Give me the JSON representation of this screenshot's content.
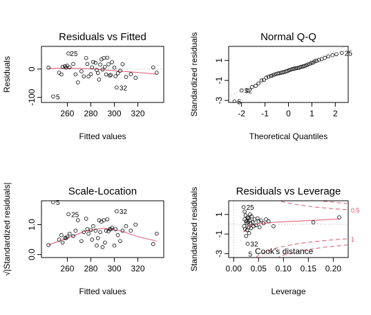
{
  "figure": {
    "colors": {
      "axis": "#000000",
      "points": "#000000",
      "smooth": "#df536b",
      "guide": "#bebebe",
      "cook": "#df536b"
    }
  },
  "chart_data": [
    {
      "type": "scatter",
      "title": "Residuals vs Fitted",
      "xlabel": "Fitted values",
      "ylabel": "Residuals",
      "xlim": [
        238,
        342
      ],
      "ylim": [
        -118,
        80
      ],
      "xticks": [
        260,
        280,
        300,
        320
      ],
      "yticks": [
        -100,
        0
      ],
      "grid": false,
      "ref_lines": [
        {
          "axis": "y",
          "value": 0,
          "style": "dotted"
        }
      ],
      "x": [
        244,
        248,
        253,
        255,
        256,
        258,
        259,
        260,
        261,
        262,
        265,
        267,
        269,
        272,
        274,
        276,
        277,
        278,
        280,
        281,
        282,
        284,
        285,
        286,
        287,
        288,
        289,
        290,
        291,
        292,
        293,
        294,
        295,
        296,
        297,
        298,
        300,
        301,
        302,
        303,
        305,
        307,
        310,
        314,
        318,
        333,
        336
      ],
      "y": [
        5,
        -97,
        -13,
        -19,
        8,
        10,
        5,
        12,
        55,
        6,
        18,
        -19,
        -47,
        -8,
        -26,
        39,
        18,
        -26,
        -18,
        6,
        25,
        22,
        -3,
        -14,
        -37,
        16,
        34,
        -2,
        39,
        8,
        -19,
        40,
        17,
        -23,
        -21,
        24,
        5,
        -25,
        -65,
        -15,
        -6,
        17,
        -28,
        -18,
        -31,
        6,
        -13
      ],
      "smooth": {
        "x": [
          244,
          260,
          280,
          300,
          320,
          336
        ],
        "y": [
          2,
          3,
          1,
          -6,
          -12,
          -18
        ]
      },
      "point_labels": [
        {
          "text": "25",
          "x": 260,
          "y": 55
        },
        {
          "text": "5",
          "x": 248,
          "y": -97
        },
        {
          "text": "32",
          "x": 302,
          "y": -65
        }
      ]
    },
    {
      "type": "scatter",
      "title": "Normal Q-Q",
      "xlabel": "Theoretical Quantiles",
      "ylabel": "Standardized residuals",
      "xlim": [
        -2.55,
        2.55
      ],
      "ylim": [
        -3.2,
        2.4
      ],
      "xticks": [
        -2,
        -1,
        0,
        1,
        2
      ],
      "yticks": [
        -3,
        -1,
        1
      ],
      "grid": false,
      "ref_lines": [
        {
          "axis": "diag",
          "intercept": 0,
          "slope": 1,
          "style": "dotted"
        }
      ],
      "x": [
        -2.3,
        -2.0,
        -1.75,
        -1.55,
        -1.4,
        -1.28,
        -1.15,
        -1.05,
        -0.95,
        -0.85,
        -0.75,
        -0.68,
        -0.6,
        -0.52,
        -0.45,
        -0.38,
        -0.3,
        -0.24,
        -0.17,
        -0.1,
        -0.04,
        0.02,
        0.08,
        0.14,
        0.2,
        0.26,
        0.32,
        0.38,
        0.44,
        0.5,
        0.56,
        0.62,
        0.68,
        0.75,
        0.82,
        0.9,
        0.98,
        1.05,
        1.12,
        1.2,
        1.3,
        1.42,
        1.55,
        1.7,
        1.88,
        2.05,
        2.28
      ],
      "y": [
        -3.1,
        -2.0,
        -2.0,
        -1.65,
        -1.55,
        -1.3,
        -1.0,
        -0.95,
        -0.72,
        -0.62,
        -0.55,
        -0.5,
        -0.42,
        -0.35,
        -0.3,
        -0.28,
        -0.22,
        -0.2,
        -0.15,
        -0.1,
        -0.06,
        0.02,
        0.06,
        0.12,
        0.15,
        0.18,
        0.22,
        0.24,
        0.26,
        0.33,
        0.36,
        0.4,
        0.42,
        0.5,
        0.58,
        0.64,
        0.75,
        0.78,
        0.9,
        0.95,
        1.05,
        1.12,
        1.25,
        1.4,
        1.52,
        1.62,
        1.75
      ],
      "point_labels": [
        {
          "text": "25",
          "x": 2.28,
          "y": 1.75
        },
        {
          "text": "32",
          "x": -2.0,
          "y": -2.0
        },
        {
          "text": "5",
          "x": -2.3,
          "y": -3.1
        }
      ]
    },
    {
      "type": "scatter",
      "title": "Scale-Location",
      "xlabel": "Fitted values",
      "ylabel": "√|Standardized residuals|",
      "xlim": [
        238,
        342
      ],
      "ylim": [
        -0.1,
        1.8
      ],
      "xticks": [
        260,
        280,
        300,
        320
      ],
      "yticks": [
        0.0,
        1.0
      ],
      "grid": false,
      "x": [
        244,
        248,
        253,
        255,
        256,
        258,
        259,
        260,
        261,
        262,
        265,
        267,
        269,
        272,
        274,
        276,
        277,
        278,
        280,
        281,
        282,
        284,
        285,
        286,
        287,
        288,
        289,
        290,
        291,
        292,
        293,
        294,
        295,
        296,
        297,
        298,
        300,
        301,
        302,
        303,
        305,
        307,
        310,
        314,
        318,
        333,
        336
      ],
      "y": [
        0.32,
        1.75,
        0.5,
        0.65,
        0.4,
        0.55,
        0.55,
        0.6,
        1.35,
        0.7,
        0.62,
        0.8,
        1.15,
        0.45,
        0.75,
        1.2,
        0.85,
        0.7,
        0.82,
        0.5,
        0.95,
        0.8,
        0.3,
        0.55,
        1.15,
        0.75,
        1.1,
        0.25,
        1.15,
        0.4,
        0.8,
        1.18,
        0.78,
        0.85,
        0.85,
        0.9,
        0.3,
        0.85,
        1.45,
        0.65,
        0.45,
        0.8,
        0.95,
        0.8,
        1.0,
        0.35,
        0.7
      ],
      "smooth": {
        "x": [
          244,
          260,
          275,
          290,
          305,
          320,
          336
        ],
        "y": [
          0.32,
          0.55,
          0.78,
          0.88,
          0.8,
          0.6,
          0.45
        ]
      },
      "point_labels": [
        {
          "text": "5",
          "x": 248,
          "y": 1.75
        },
        {
          "text": "25",
          "x": 261,
          "y": 1.35
        },
        {
          "text": "32",
          "x": 302,
          "y": 1.45
        }
      ]
    },
    {
      "type": "scatter",
      "title": "Residuals vs Leverage",
      "xlabel": "Leverage",
      "ylabel": "Standardized residuals",
      "xlim": [
        -0.01,
        0.23
      ],
      "ylim": [
        -3.4,
        2.4
      ],
      "xticks": [
        0.0,
        0.05,
        0.1,
        0.15,
        0.2
      ],
      "yticks": [
        -3,
        -1,
        1
      ],
      "grid": false,
      "ref_lines": [
        {
          "axis": "y",
          "value": 0,
          "style": "dotted"
        },
        {
          "axis": "x",
          "value": 0,
          "style": "dotted"
        }
      ],
      "x": [
        0.02,
        0.021,
        0.022,
        0.022,
        0.023,
        0.024,
        0.025,
        0.025,
        0.026,
        0.027,
        0.028,
        0.028,
        0.029,
        0.03,
        0.03,
        0.031,
        0.032,
        0.033,
        0.034,
        0.035,
        0.036,
        0.038,
        0.04,
        0.042,
        0.045,
        0.048,
        0.05,
        0.052,
        0.055,
        0.06,
        0.065,
        0.07,
        0.08,
        0.16,
        0.212
      ],
      "y": [
        1.75,
        -0.2,
        0.5,
        1.3,
        -0.5,
        0.9,
        -1.2,
        0.3,
        0.1,
        -0.6,
        0.7,
        -2.0,
        0.2,
        -0.3,
        0.6,
        -0.9,
        0.4,
        1.0,
        0.1,
        -0.4,
        0.8,
        0.2,
        -0.2,
        0.5,
        -0.1,
        0.6,
        0.3,
        -0.3,
        0.4,
        0.1,
        0.5,
        0.3,
        -0.2,
        0.2,
        0.7
      ],
      "smooth": {
        "x": [
          0.02,
          0.03,
          0.045,
          0.08,
          0.16,
          0.212
        ],
        "y": [
          -0.8,
          -0.2,
          0.0,
          0.2,
          0.4,
          0.55
        ]
      },
      "cook_curves": [
        {
          "label": "0.5",
          "x": [
            0.025,
            0.05,
            0.08,
            0.12,
            0.16,
            0.2,
            0.228
          ],
          "y": [
            4.4,
            3.15,
            2.5,
            2.05,
            1.78,
            1.59,
            1.49
          ],
          "ny": [
            -4.4,
            -3.15,
            -2.5,
            -2.05,
            -1.78,
            -1.59,
            -1.49
          ]
        },
        {
          "label": "1",
          "x": [
            0.06,
            0.1,
            0.14,
            0.18,
            0.228
          ],
          "y": [
            4.05,
            3.15,
            2.66,
            2.36,
            2.11
          ],
          "ny": [
            -4.05,
            -3.15,
            -2.66,
            -2.36,
            -2.11
          ]
        }
      ],
      "legend": {
        "text": "Cook's distance",
        "position": "bottom-right"
      },
      "point_labels": [
        {
          "text": "25",
          "x": 0.02,
          "y": 1.75
        },
        {
          "text": "32",
          "x": 0.028,
          "y": -2.0
        },
        {
          "text": "5",
          "x": 0.024,
          "y": -3.0
        }
      ]
    }
  ]
}
